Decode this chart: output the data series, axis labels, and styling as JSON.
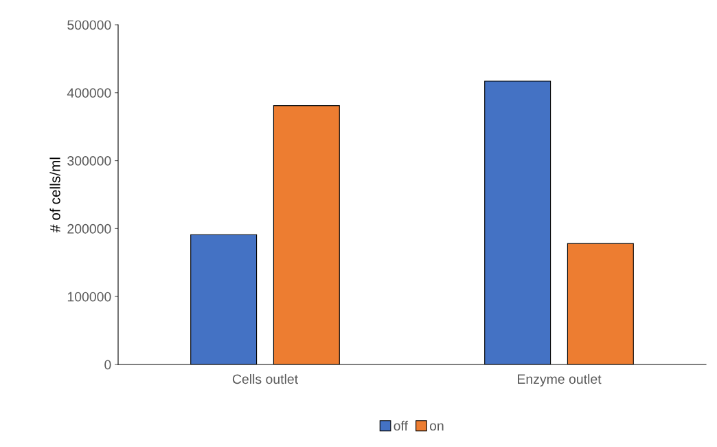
{
  "chart_data": {
    "type": "bar",
    "ylabel": "# of cells/ml",
    "categories": [
      "Cells outlet",
      "Enzyme outlet"
    ],
    "series": [
      {
        "name": "off",
        "color": "#4472c4",
        "values": [
          191000,
          417000
        ]
      },
      {
        "name": "on",
        "color": "#ed7d31",
        "values": [
          381000,
          178000
        ]
      }
    ],
    "ylim": [
      0,
      500000
    ],
    "yticks": [
      0,
      100000,
      200000,
      300000,
      400000,
      500000
    ],
    "grid": false,
    "legend": "bottom"
  }
}
